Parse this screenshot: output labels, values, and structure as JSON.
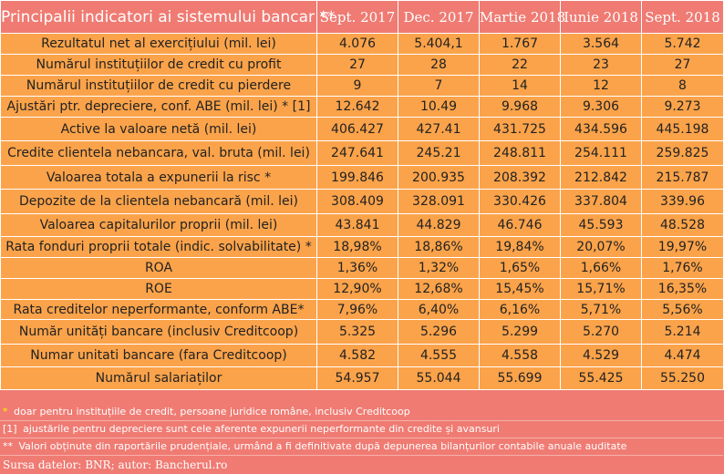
{
  "header": {
    "title": "Principalii indicatori ai sistemului bancar **",
    "columns": [
      "Sept. 2017",
      "Dec. 2017",
      "Martie 2018",
      "Iunie 2018",
      "Sept. 2018"
    ]
  },
  "rows": [
    {
      "label": "Rezultatul net al exercițiului (mil. lei)",
      "values": [
        "4.076",
        "5.404,1",
        "1.767",
        "3.564",
        "5.742"
      ]
    },
    {
      "label": "Numărul instituțiilor de credit cu profit",
      "values": [
        "27",
        "28",
        "22",
        "23",
        "27"
      ]
    },
    {
      "label": "Numărul instituțiilor de credit cu pierdere",
      "values": [
        "9",
        "7",
        "14",
        "12",
        "8"
      ]
    },
    {
      "label": "Ajustări ptr. depreciere, conf. ABE (mil. lei) * [1]",
      "values": [
        "12.642",
        "10.49",
        "9.968",
        "9.306",
        "9.273"
      ]
    },
    {
      "label": "Active la valoare netă (mil. lei)",
      "values": [
        "406.427",
        "427.41",
        "431.725",
        "434.596",
        "445.198"
      ]
    },
    {
      "label": "Credite clientela nebancara, val. bruta (mil. lei)",
      "values": [
        "247.641",
        "245.21",
        "248.811",
        "254.111",
        "259.825"
      ]
    },
    {
      "label": "Valoarea totala a expunerii la risc *",
      "values": [
        "199.846",
        "200.935",
        "208.392",
        "212.842",
        "215.787"
      ]
    },
    {
      "label": "Depozite de la clientela nebancară (mil. lei)",
      "values": [
        "308.409",
        "328.091",
        "330.426",
        "337.804",
        "339.96"
      ]
    },
    {
      "label": "Valoarea capitalurilor proprii  (mil. lei)",
      "values": [
        "43.841",
        "44.829",
        "46.746",
        "45.593",
        "48.528"
      ]
    },
    {
      "label": "Rata fonduri proprii totale (indic. solvabilitate) *",
      "values": [
        "18,98%",
        "18,86%",
        "19,84%",
        "20,07%",
        "19,97%"
      ]
    },
    {
      "label": "ROA",
      "values": [
        "1,36%",
        "1,32%",
        "1,65%",
        "1,66%",
        "1,76%"
      ]
    },
    {
      "label": "ROE",
      "values": [
        "12,90%",
        "12,68%",
        "15,45%",
        "15,71%",
        "16,35%"
      ]
    },
    {
      "label": "Rata creditelor neperformante, conform ABE*",
      "values": [
        "7,96%",
        "6,40%",
        "6,16%",
        "5,71%",
        "5,56%"
      ]
    },
    {
      "label": "Număr unități bancare (inclusiv Creditcoop)",
      "values": [
        "5.325",
        "5.296",
        "5.299",
        "5.270",
        "5.214"
      ]
    },
    {
      "label": "Numar unitati bancare (fara Creditcoop)",
      "values": [
        "4.582",
        "4.555",
        "4.558",
        "4.529",
        "4.474"
      ]
    },
    {
      "label": "Numărul salariaților",
      "values": [
        "54.957",
        "55.044",
        "55.699",
        "55.425",
        "55.250"
      ]
    }
  ],
  "notes": [
    {
      "marker": "*",
      "text": "doar pentru instituțiile de credit, persoane juridice române, inclusiv Creditcoop"
    },
    {
      "marker": "[1]",
      "text": "ajustările pentru depreciere sunt cele aferente expunerii neperformante din credite și avansuri"
    },
    {
      "marker": "**",
      "text": "Valori obținute din raportările prudențiale, urmând a fi definitivate după depunerea bilanțurilor contabile anuale auditate"
    }
  ],
  "source": "Sursa datelor: BNR; autor: Bancherul.ro",
  "colors": {
    "header_bg": "#ef7b73",
    "row_bg": "#fba34a",
    "note_marker": "#fff200"
  }
}
